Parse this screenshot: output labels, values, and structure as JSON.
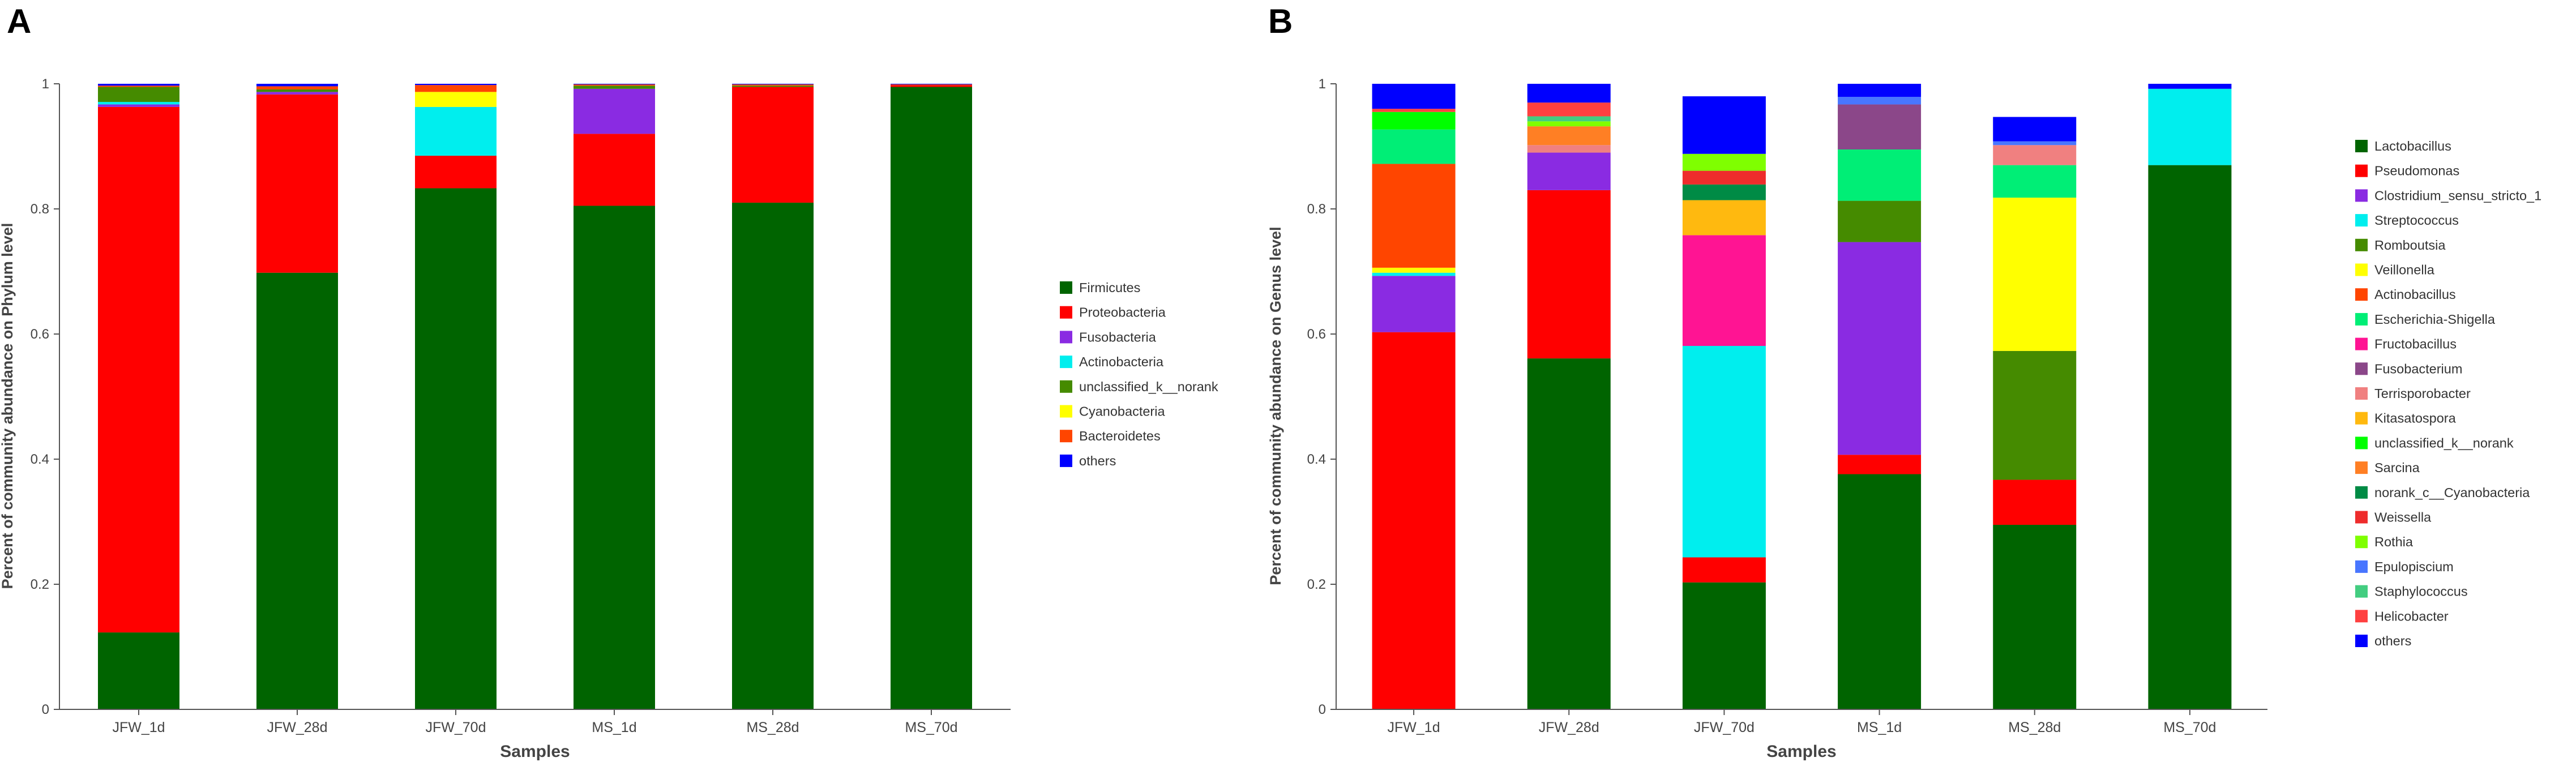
{
  "colors": {
    "Firmicutes": "#006400",
    "Proteobacteria": "#ff0000",
    "Fusobacteria": "#8a2be2",
    "Actinobacteria": "#00eeee",
    "unclassified_k__norank": "#458b00",
    "Cyanobacteria": "#ffff00",
    "Bacteroidetes": "#ff4500",
    "others": "#0000ff",
    "Lactobacillus": "#006400",
    "Pseudomonas": "#ff0000",
    "Clostridium_sensu_stricto_1": "#8a2be2",
    "Streptococcus": "#00eeee",
    "Romboutsia": "#458b00",
    "Veillonella": "#ffff00",
    "Actinobacillus": "#ff4500",
    "Escherichia-Shigella": "#00ee76",
    "Fructobacillus": "#ff1493",
    "Fusobacterium": "#8b4789",
    "Terrisporobacter": "#f08080",
    "Kitasatospora": "#ffb90f",
    "unclassified_k__norank_g": "#00ff00",
    "Sarcina": "#ff7f24",
    "norank_c__Cyanobacteria": "#008b45",
    "Weissella": "#ee2c2c",
    "Rothia": "#7fff00",
    "Epulopiscium": "#4876ff",
    "Staphylococcus": "#43cd80",
    "Helicobacter": "#ff4040",
    "others_g": "#0000ff"
  },
  "chart_data": [
    {
      "panel_label": "A",
      "type": "bar",
      "stacked": true,
      "title": "",
      "xlabel": "Samples",
      "ylabel": "Percent of community abundance on Phylum level",
      "ylim": [
        0,
        1
      ],
      "yticks": [
        "0",
        "0.2",
        "0.4",
        "0.6",
        "0.8",
        "1"
      ],
      "categories": [
        "JFW_1d",
        "JFW_28d",
        "JFW_70d",
        "MS_1d",
        "MS_28d",
        "MS_70d"
      ],
      "series": [
        {
          "name": "Firmicutes",
          "color_key": "Firmicutes",
          "values": [
            0.123,
            0.698,
            0.833,
            0.805,
            0.81,
            0.995
          ]
        },
        {
          "name": "Proteobacteria",
          "color_key": "Proteobacteria",
          "values": [
            0.84,
            0.285,
            0.052,
            0.115,
            0.185,
            0.003
          ]
        },
        {
          "name": "Fusobacteria",
          "color_key": "Fusobacteria",
          "values": [
            0.004,
            0.004,
            0.0,
            0.072,
            0.0,
            0.0
          ]
        },
        {
          "name": "Actinobacteria",
          "color_key": "Actinobacteria",
          "values": [
            0.004,
            0.0,
            0.078,
            0.0,
            0.0,
            0.0
          ]
        },
        {
          "name": "unclassified_k__norank",
          "color_key": "unclassified_k__norank",
          "values": [
            0.024,
            0.004,
            0.0,
            0.005,
            0.002,
            0.0
          ]
        },
        {
          "name": "Cyanobacteria",
          "color_key": "Cyanobacteria",
          "values": [
            0.0,
            0.0,
            0.024,
            0.0,
            0.0,
            0.0
          ]
        },
        {
          "name": "Bacteroidetes",
          "color_key": "Bacteroidetes",
          "values": [
            0.002,
            0.005,
            0.011,
            0.002,
            0.002,
            0.001
          ]
        },
        {
          "name": "others",
          "color_key": "others",
          "values": [
            0.003,
            0.004,
            0.002,
            0.001,
            0.001,
            0.001
          ]
        }
      ]
    },
    {
      "panel_label": "B",
      "type": "bar",
      "stacked": true,
      "title": "",
      "xlabel": "Samples",
      "ylabel": "Percent of community abundance on Genus level",
      "ylim": [
        0,
        1
      ],
      "yticks": [
        "0",
        "0.2",
        "0.4",
        "0.6",
        "0.8",
        "1"
      ],
      "categories": [
        "JFW_1d",
        "JFW_28d",
        "JFW_70d",
        "MS_1d",
        "MS_28d",
        "MS_70d"
      ],
      "series": [
        {
          "name": "Lactobacillus",
          "color_key": "Lactobacillus",
          "values": [
            0.0,
            0.561,
            0.203,
            0.376,
            0.295,
            0.87
          ]
        },
        {
          "name": "Pseudomonas",
          "color_key": "Pseudomonas",
          "values": [
            0.603,
            0.269,
            0.04,
            0.031,
            0.072,
            0.0
          ]
        },
        {
          "name": "Clostridium_sensu_stricto_1",
          "color_key": "Clostridium_sensu_stricto_1",
          "values": [
            0.09,
            0.06,
            0.0,
            0.34,
            0.0,
            0.0
          ]
        },
        {
          "name": "Streptococcus",
          "color_key": "Streptococcus",
          "values": [
            0.005,
            0.0,
            0.338,
            0.0,
            0.0,
            0.122
          ]
        },
        {
          "name": "Romboutsia",
          "color_key": "Romboutsia",
          "values": [
            0.0,
            0.0,
            0.0,
            0.066,
            0.206,
            0.0
          ]
        },
        {
          "name": "Veillonella",
          "color_key": "Veillonella",
          "values": [
            0.008,
            0.0,
            0.0,
            0.0,
            0.245,
            0.0
          ]
        },
        {
          "name": "Actinobacillus",
          "color_key": "Actinobacillus",
          "values": [
            0.166,
            0.0,
            0.0,
            0.0,
            0.0,
            0.0
          ]
        },
        {
          "name": "Escherichia-Shigella",
          "color_key": "Escherichia-Shigella",
          "values": [
            0.055,
            0.0,
            0.0,
            0.082,
            0.052,
            0.0
          ]
        },
        {
          "name": "Fructobacillus",
          "color_key": "Fructobacillus",
          "values": [
            0.0,
            0.0,
            0.177,
            0.0,
            0.0,
            0.0
          ]
        },
        {
          "name": "Fusobacterium",
          "color_key": "Fusobacterium",
          "values": [
            0.0,
            0.0,
            0.0,
            0.072,
            0.0,
            0.0
          ]
        },
        {
          "name": "Terrisporobacter",
          "color_key": "Terrisporobacter",
          "values": [
            0.0,
            0.012,
            0.0,
            0.0,
            0.032,
            0.0
          ]
        },
        {
          "name": "Kitasatospora",
          "color_key": "Kitasatospora",
          "values": [
            0.0,
            0.0,
            0.056,
            0.0,
            0.0,
            0.0
          ]
        },
        {
          "name": "unclassified_k__norank",
          "color_key": "unclassified_k__norank_g",
          "values": [
            0.028,
            0.0,
            0.0,
            0.0,
            0.0,
            0.0
          ]
        },
        {
          "name": "Sarcina",
          "color_key": "Sarcina",
          "values": [
            0.0,
            0.03,
            0.0,
            0.0,
            0.0,
            0.0
          ]
        },
        {
          "name": "norank_c__Cyanobacteria",
          "color_key": "norank_c__Cyanobacteria",
          "values": [
            0.0,
            0.0,
            0.025,
            0.0,
            0.0,
            0.0
          ]
        },
        {
          "name": "Weissella",
          "color_key": "Weissella",
          "values": [
            0.0,
            0.0,
            0.022,
            0.0,
            0.0,
            0.0
          ]
        },
        {
          "name": "Rothia",
          "color_key": "Rothia",
          "values": [
            0.0,
            0.008,
            0.027,
            0.0,
            0.0,
            0.0
          ]
        },
        {
          "name": "Epulopiscium",
          "color_key": "Epulopiscium",
          "values": [
            0.0,
            0.0,
            0.0,
            0.012,
            0.006,
            0.0
          ]
        },
        {
          "name": "Staphylococcus",
          "color_key": "Staphylococcus",
          "values": [
            0.0,
            0.008,
            0.0,
            0.0,
            0.0,
            0.0
          ]
        },
        {
          "name": "Helicobacter",
          "color_key": "Helicobacter",
          "values": [
            0.005,
            0.022,
            0.0,
            0.0,
            0.0,
            0.0
          ]
        },
        {
          "name": "others",
          "color_key": "others_g",
          "values": [
            0.04,
            0.03,
            0.092,
            0.021,
            0.039,
            0.008
          ]
        }
      ]
    }
  ]
}
